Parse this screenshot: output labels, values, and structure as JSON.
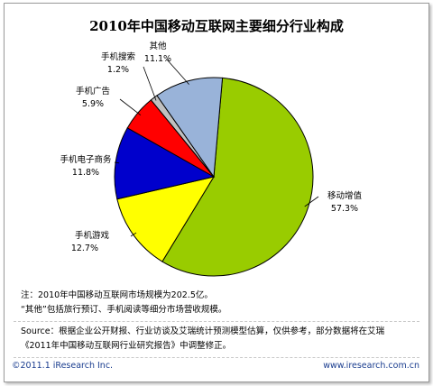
{
  "chart_data": {
    "type": "pie",
    "title": "2010年中国移动互联网主要细分行业构成",
    "slices": [
      {
        "label": "移动增值",
        "value": 57.3,
        "display": "57.3%",
        "color": "#99cc00"
      },
      {
        "label": "手机游戏",
        "value": 12.7,
        "display": "12.7%",
        "color": "#ffff00"
      },
      {
        "label": "手机电子商务",
        "value": 11.8,
        "display": "11.8%",
        "color": "#0000cc"
      },
      {
        "label": "手机广告",
        "value": 5.9,
        "display": "5.9%",
        "color": "#ff0000"
      },
      {
        "label": "手机搜索",
        "value": 1.2,
        "display": "1.2%",
        "color": "#c0c0c0"
      },
      {
        "label": "其他",
        "value": 11.1,
        "display": "11.1%",
        "color": "#99b3d9"
      }
    ]
  },
  "notes": {
    "line1": "注：2010年中国移动互联网市场规模为202.5亿。",
    "line2": "“其他”包括旅行预订、手机阅读等细分市场营收规模。",
    "source1": "Source：根据企业公开财报、行业访谈及艾瑞统计预测模型估算，仅供参考，部分数据将在艾瑞",
    "source2": "《2011年中国移动互联网行业研究报告》中调整修正。"
  },
  "footer": {
    "copyright": "©2011.1 iResearch Inc.",
    "website": "www.iresearch.com.cn"
  }
}
